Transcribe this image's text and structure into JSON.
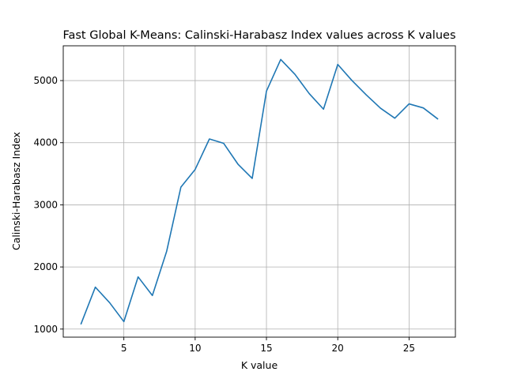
{
  "chart_data": {
    "type": "line",
    "title": "Fast Global K-Means: Calinski-Harabasz Index values across K values",
    "xlabel": "K value",
    "ylabel": "Calinski-Harabasz Index",
    "xlim": [
      0.75,
      28.25
    ],
    "ylim": [
      870,
      5560
    ],
    "xticks": [
      5,
      10,
      15,
      20,
      25
    ],
    "yticks": [
      1000,
      2000,
      3000,
      4000,
      5000
    ],
    "grid": true,
    "series": [
      {
        "color": "#1f77b4",
        "x": [
          2,
          3,
          4,
          5,
          6,
          7,
          8,
          9,
          10,
          11,
          12,
          13,
          14,
          15,
          16,
          17,
          18,
          19,
          20,
          21,
          22,
          23,
          24,
          25,
          26,
          27
        ],
        "y": [
          1085,
          1675,
          1425,
          1120,
          1840,
          1540,
          2250,
          3285,
          3570,
          4060,
          3990,
          3655,
          3425,
          4830,
          5340,
          5100,
          4790,
          4540,
          5260,
          5000,
          4770,
          4555,
          4395,
          4625,
          4560,
          4385
        ]
      }
    ]
  }
}
